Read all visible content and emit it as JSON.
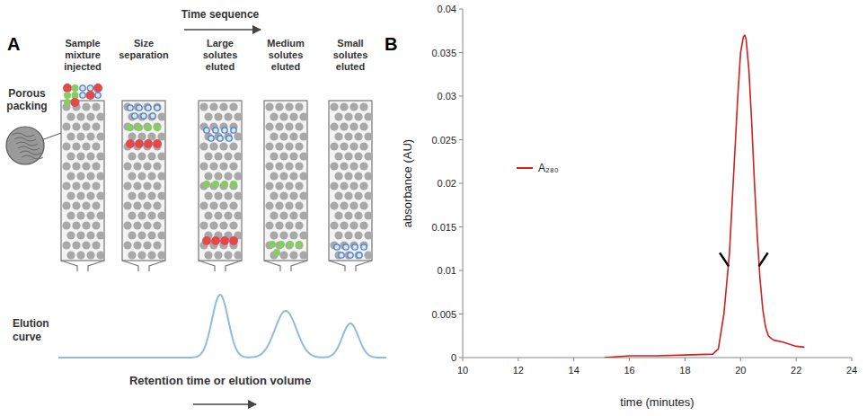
{
  "diagram": {
    "panel_label": "A",
    "header": "Time sequence",
    "callout": "Porous packing",
    "columns": [
      {
        "label": "Sample mixture injected"
      },
      {
        "label": "Size separation"
      },
      {
        "label": "Large solutes eluted"
      },
      {
        "label": "Medium solutes eluted"
      },
      {
        "label": "Small solutes eluted"
      }
    ],
    "curve_label": "Elution curve",
    "x_label": "Retention time or elution volume"
  },
  "chart_data": {
    "panel_label": "B",
    "type": "line",
    "x_label": "time (minutes)",
    "y_label": "absorbance (AU)",
    "xlim": [
      10,
      24
    ],
    "xticks": [
      10,
      12,
      14,
      16,
      18,
      20,
      22,
      24
    ],
    "ylim": [
      0,
      0.04
    ],
    "yticks": [
      0,
      0.005,
      0.01,
      0.015,
      0.02,
      0.025,
      0.03,
      0.035,
      0.04
    ],
    "legend": "upper left",
    "x": [
      15.1,
      16,
      17,
      18,
      19,
      19.2,
      19.4,
      19.6,
      19.8,
      19.9,
      20.0,
      20.1,
      20.15,
      20.2,
      20.3,
      20.4,
      20.5,
      20.6,
      20.7,
      20.8,
      20.9,
      21.0,
      21.1,
      21.2,
      21.5,
      21.8,
      22.0,
      22.3
    ],
    "series": [
      {
        "name": "A₂₈₀",
        "color": "#d02020",
        "values": [
          0,
          0.0002,
          0.0002,
          0.0003,
          0.0004,
          0.001,
          0.005,
          0.012,
          0.024,
          0.03,
          0.035,
          0.0368,
          0.037,
          0.0365,
          0.033,
          0.027,
          0.02,
          0.014,
          0.009,
          0.0055,
          0.0035,
          0.0025,
          0.0022,
          0.002,
          0.0018,
          0.0015,
          0.0013,
          0.0012
        ]
      }
    ]
  }
}
